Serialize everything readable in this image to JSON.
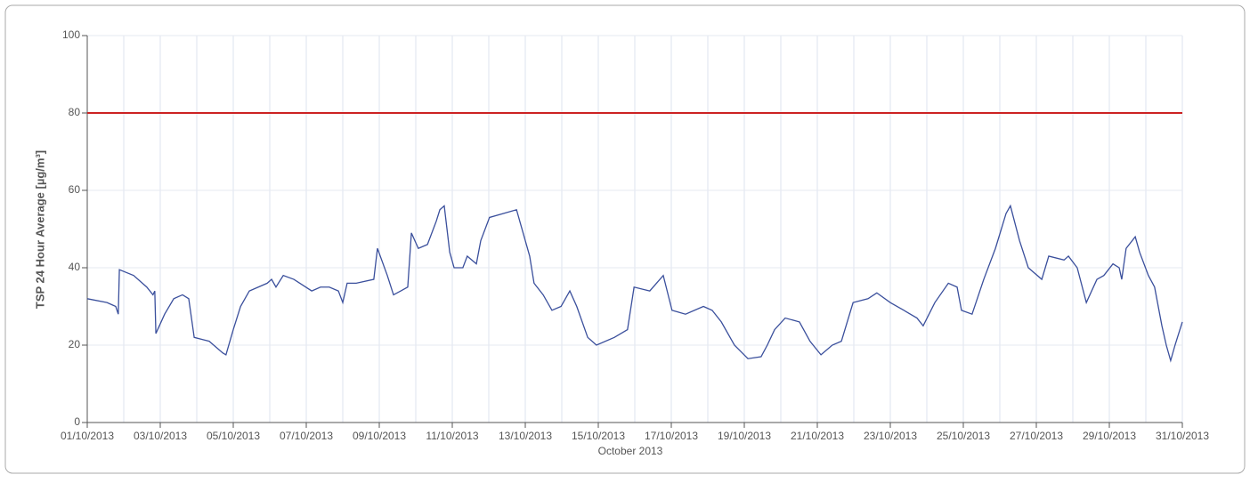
{
  "chart_data": {
    "type": "line",
    "xlabel": "October 2013",
    "ylabel": "TSP 24 Hour Average [µg/m³]",
    "xlim": [
      1,
      31
    ],
    "ylim": [
      0,
      100
    ],
    "yticks": [
      0,
      20,
      40,
      60,
      80,
      100
    ],
    "xticks": [
      {
        "value": 1,
        "label": "01/10/2013"
      },
      {
        "value": 3,
        "label": "03/10/2013"
      },
      {
        "value": 5,
        "label": "05/10/2013"
      },
      {
        "value": 7,
        "label": "07/10/2013"
      },
      {
        "value": 9,
        "label": "09/10/2013"
      },
      {
        "value": 11,
        "label": "11/10/2013"
      },
      {
        "value": 13,
        "label": "13/10/2013"
      },
      {
        "value": 15,
        "label": "15/10/2013"
      },
      {
        "value": 17,
        "label": "17/10/2013"
      },
      {
        "value": 19,
        "label": "19/10/2013"
      },
      {
        "value": 21,
        "label": "21/10/2013"
      },
      {
        "value": 23,
        "label": "23/10/2013"
      },
      {
        "value": 25,
        "label": "25/10/2013"
      },
      {
        "value": 27,
        "label": "27/10/2013"
      },
      {
        "value": 29,
        "label": "29/10/2013"
      },
      {
        "value": 31,
        "label": "31/10/2013"
      }
    ],
    "x_gridlines": [
      1,
      2,
      3,
      4,
      5,
      6,
      7,
      8,
      9,
      10,
      11,
      12,
      13,
      14,
      15,
      16,
      17,
      18,
      19,
      20,
      21,
      22,
      23,
      24,
      25,
      26,
      27,
      28,
      29,
      30,
      31
    ],
    "grid": true,
    "reference_line": {
      "value": 80,
      "color": "#cc2222"
    },
    "series": [
      {
        "color": "#3a4f9c",
        "x": [
          1,
          1.54,
          1.78,
          1.85,
          1.88,
          2.27,
          2.63,
          2.8,
          2.85,
          2.88,
          3.12,
          3.37,
          3.61,
          3.78,
          3.93,
          4.34,
          4.71,
          4.8,
          5.0,
          5.2,
          5.44,
          5.93,
          6.05,
          6.17,
          6.37,
          6.66,
          7.15,
          7.39,
          7.63,
          7.88,
          8.0,
          8.12,
          8.37,
          8.85,
          8.95,
          9.22,
          9.39,
          9.59,
          9.78,
          9.88,
          10.07,
          10.32,
          10.56,
          10.66,
          10.78,
          10.93,
          11.05,
          11.29,
          11.41,
          11.66,
          11.78,
          12.02,
          12.39,
          12.76,
          12.88,
          13.12,
          13.24,
          13.49,
          13.73,
          13.98,
          14.22,
          14.41,
          14.71,
          14.95,
          15.44,
          15.8,
          15.98,
          16.41,
          16.78,
          17.02,
          17.39,
          17.88,
          18.12,
          18.37,
          18.73,
          19.1,
          19.46,
          19.63,
          19.83,
          20.12,
          20.51,
          20.8,
          21.1,
          21.41,
          21.66,
          21.98,
          22.39,
          22.63,
          23.0,
          23.37,
          23.73,
          23.9,
          24.22,
          24.59,
          24.83,
          24.95,
          25.24,
          25.56,
          25.88,
          26.17,
          26.29,
          26.54,
          26.78,
          27.15,
          27.34,
          27.76,
          27.88,
          28.12,
          28.37,
          28.66,
          28.85,
          29.1,
          29.27,
          29.34,
          29.46,
          29.71,
          29.83,
          30.07,
          30.24,
          30.44,
          30.56,
          30.68,
          30.8,
          31
        ],
        "values": [
          32,
          31,
          30,
          28,
          39.5,
          38,
          35,
          33,
          34,
          23,
          28,
          32,
          33,
          32,
          22,
          21,
          18,
          17.5,
          24,
          30,
          34,
          36,
          37,
          35,
          38,
          37,
          34,
          35,
          35,
          34,
          31,
          36,
          36,
          37,
          45,
          38,
          33,
          34,
          35,
          49,
          45,
          46,
          52,
          55,
          56,
          44,
          40,
          40,
          43,
          41,
          47,
          53,
          54,
          55,
          51,
          43,
          36,
          33,
          29,
          30,
          34,
          30,
          22,
          20,
          22,
          24,
          35,
          34,
          38,
          29,
          28,
          30,
          29,
          26,
          20,
          16.5,
          17,
          20,
          24,
          27,
          26,
          21,
          17.5,
          20,
          21,
          31,
          32,
          33.5,
          31,
          29,
          27,
          25,
          31,
          36,
          35,
          29,
          28,
          37,
          45,
          54,
          56,
          47,
          40,
          37,
          43,
          42,
          43,
          40,
          31,
          37,
          38,
          41,
          40,
          37,
          45,
          48,
          44,
          38,
          35,
          25,
          20,
          16,
          20,
          26
        ]
      }
    ]
  }
}
